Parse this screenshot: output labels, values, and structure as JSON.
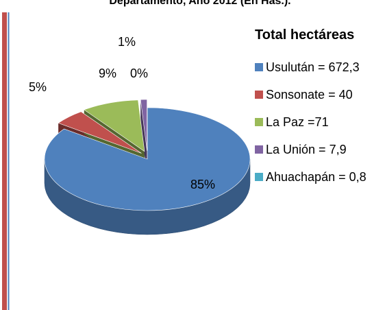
{
  "chart_data": {
    "type": "pie3d",
    "title": "Departamento, Año 2012 (En Has.).",
    "legend_title": "Total hectáreas",
    "categories": [
      "Usulután = 672,3",
      "Sonsonate = 40",
      "La Paz =71",
      "La Unión = 7,9",
      "Ahuachapán = 0,8"
    ],
    "values": [
      85,
      5,
      9,
      1,
      0
    ],
    "value_labels": [
      "85%",
      "5%",
      "9%",
      "1%",
      "0%"
    ],
    "colors": [
      "#4f81bd",
      "#c0504d",
      "#9bbb59",
      "#8064a2",
      "#4bacc6"
    ],
    "legend": "right"
  }
}
